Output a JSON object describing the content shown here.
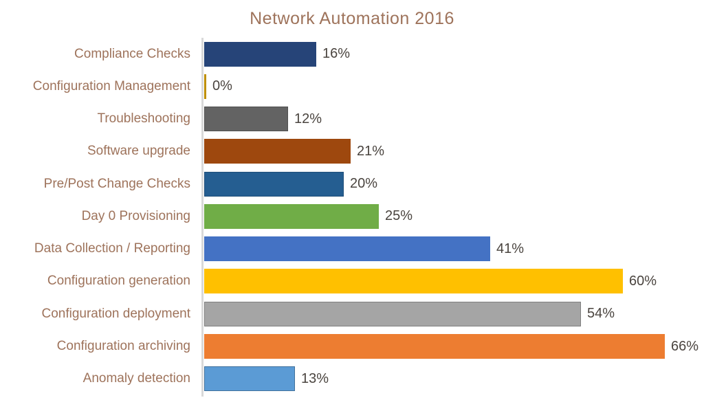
{
  "chart_data": {
    "type": "bar",
    "orientation": "horizontal",
    "title": "Network Automation 2016",
    "categories": [
      "Compliance Checks",
      "Configuration Management",
      "Troubleshooting",
      "Software upgrade",
      "Pre/Post Change Checks",
      "Day 0 Provisioning",
      "Data Collection / Reporting",
      "Configuration generation",
      "Configuration deployment",
      "Configuration archiving",
      "Anomaly detection"
    ],
    "values": [
      16,
      0,
      12,
      21,
      20,
      25,
      41,
      60,
      54,
      66,
      13
    ],
    "value_labels": [
      "16%",
      "0%",
      "12%",
      "21%",
      "20%",
      "25%",
      "41%",
      "60%",
      "54%",
      "66%",
      "13%"
    ],
    "bar_colors": [
      "#264478",
      "#BF8F00",
      "#636363",
      "#9E480E",
      "#255E91",
      "#70AD47",
      "#4472C4",
      "#FFC000",
      "#A5A5A5",
      "#ED7D31",
      "#5B9BD5"
    ],
    "bar_border_colors": [
      "",
      "",
      "#505050",
      "",
      "#1F4E79",
      "",
      "",
      "",
      "#7F7F7F",
      "",
      "#41719C"
    ],
    "xlim": [
      0,
      70
    ],
    "grid": false,
    "legend": false,
    "data_labels": true,
    "colors": {
      "title_text": "#9E735B",
      "category_text": "#9E735B",
      "value_text": "#4A443F",
      "axis_line": "#D9D9D9",
      "background": "#FFFFFF"
    }
  }
}
